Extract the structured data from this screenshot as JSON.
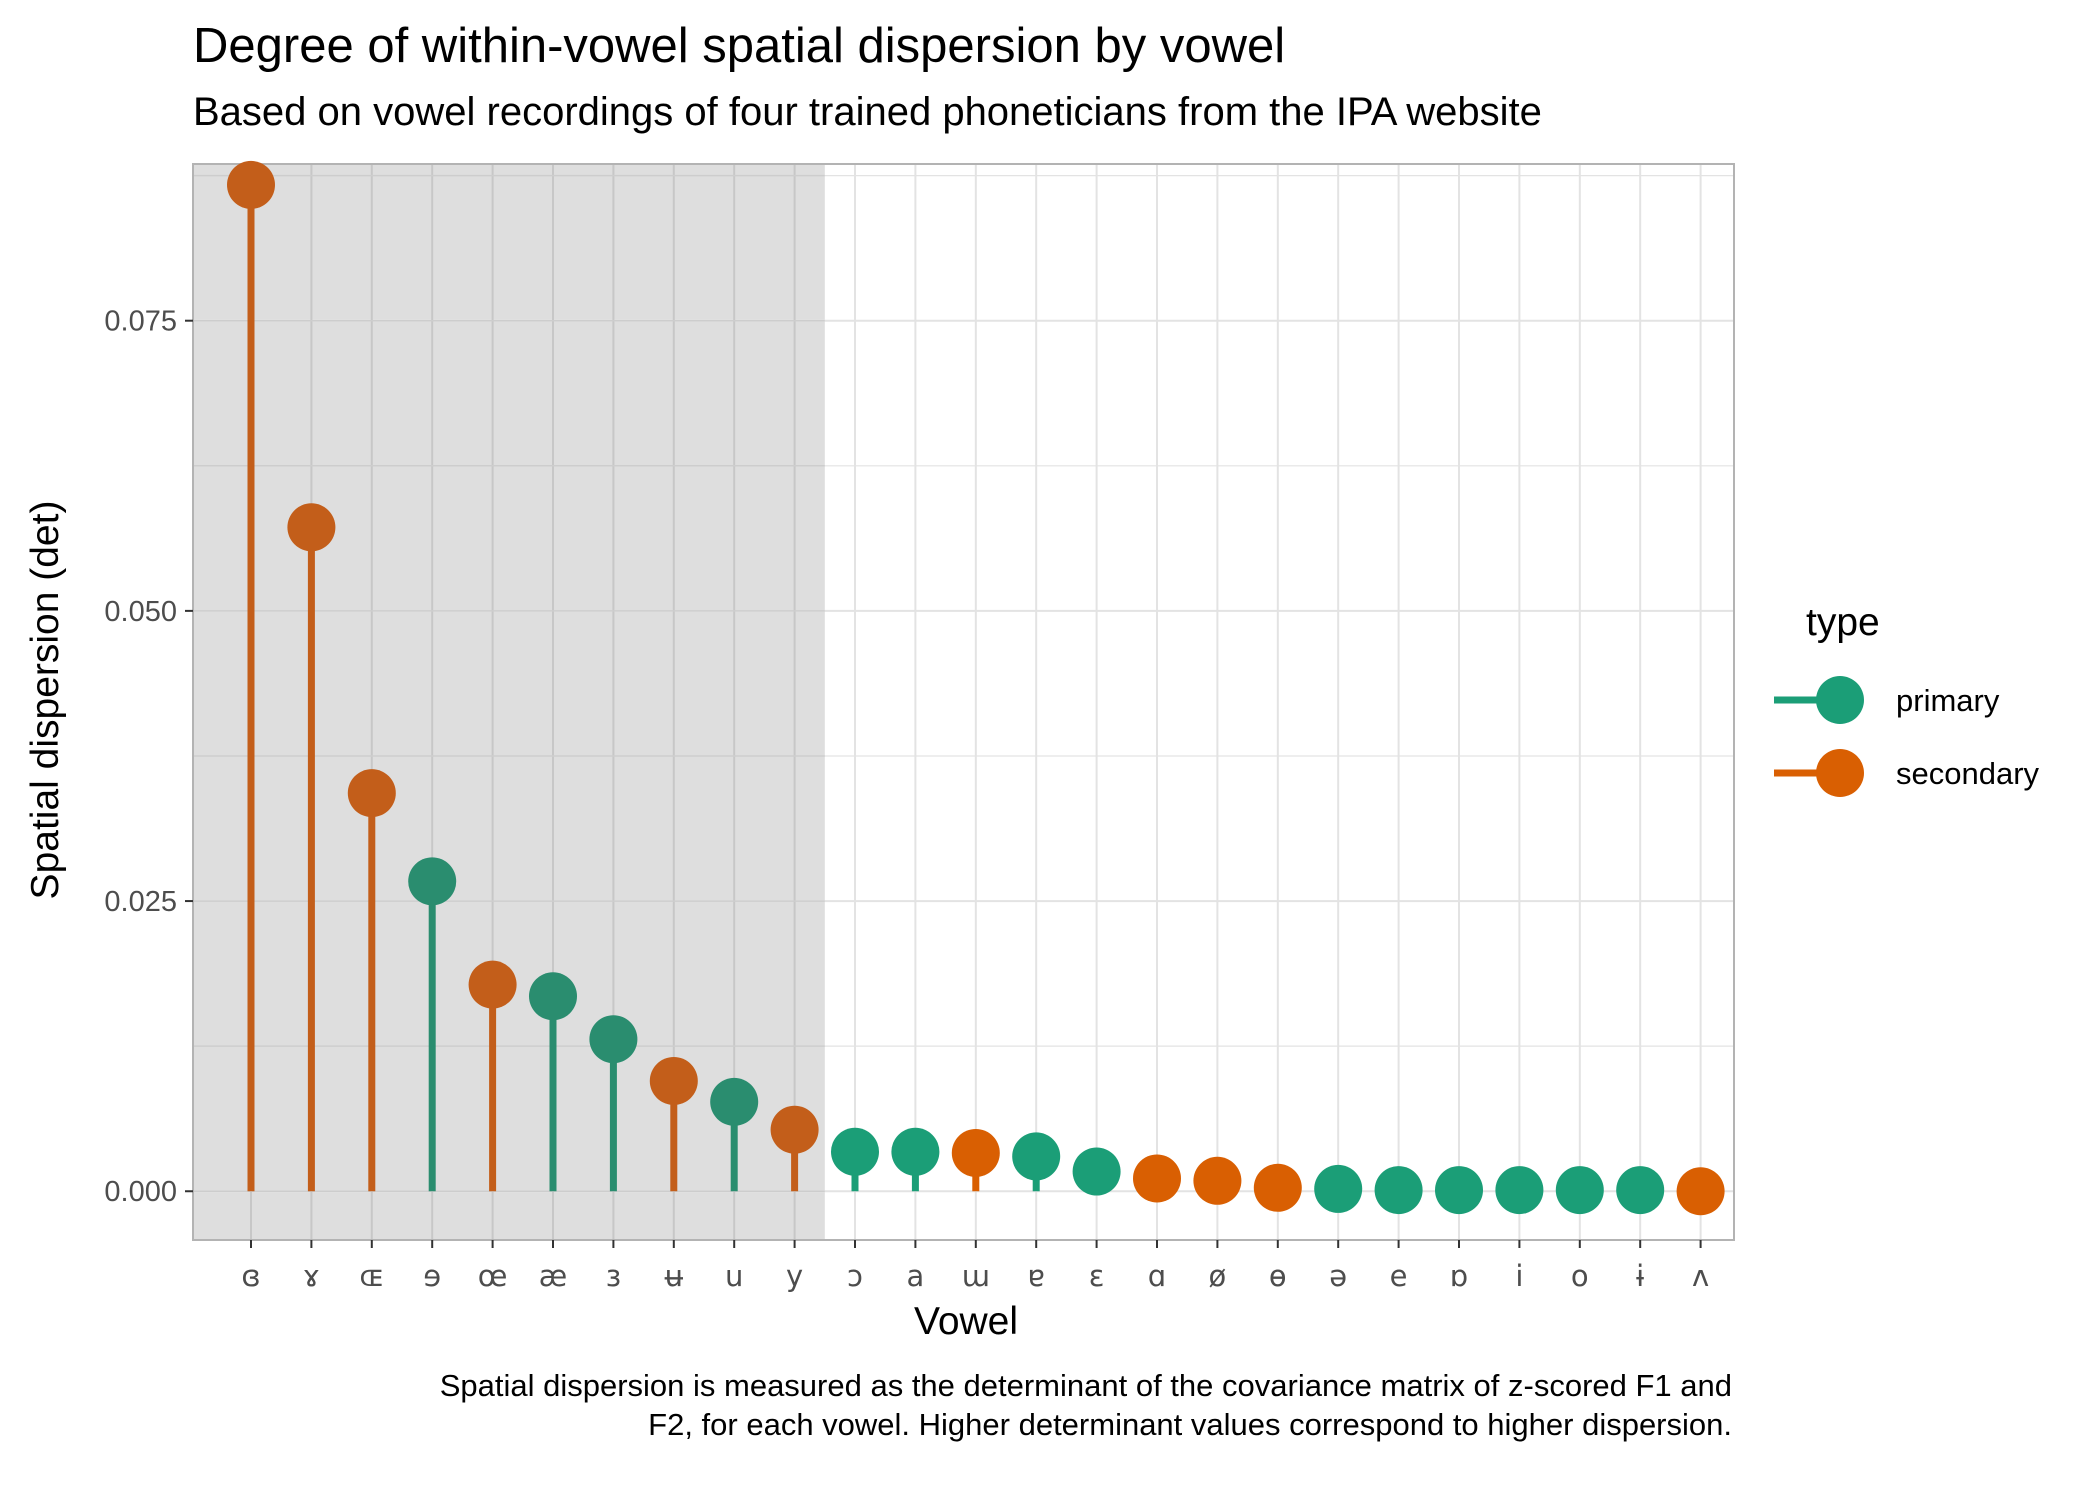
{
  "chart_data": {
    "type": "lollipop",
    "title": "Degree of within-vowel spatial dispersion by vowel",
    "subtitle": "Based on vowel recordings of four trained phoneticians from the IPA website",
    "xlabel": "Vowel",
    "ylabel": "Spatial dispersion (det)",
    "caption": "Spatial dispersion is measured as the determinant of the covariance matrix of z-scored F1 and F2, for each vowel. Higher determinant values correspond to higher dispersion.",
    "ylim": [
      -0.0042,
      0.0885
    ],
    "yticks": [
      0.0,
      0.025,
      0.05,
      0.075
    ],
    "ytick_labels": [
      "0.000",
      "0.025",
      "0.050",
      "0.075"
    ],
    "grid": true,
    "highlighted_categories": 10,
    "legend": {
      "title": "type",
      "position": "right",
      "items": [
        {
          "label": "primary",
          "color": "#1b9e77"
        },
        {
          "label": "secondary",
          "color": "#d95f02"
        }
      ]
    },
    "categories": [
      "ɞ",
      "ɤ",
      "ɶ",
      "ɘ",
      "œ",
      "æ",
      "ɜ",
      "ʉ",
      "u",
      "y",
      "ɔ",
      "a",
      "ɯ",
      "ɐ",
      "ɛ",
      "ɑ",
      "ø",
      "ɵ",
      "ə",
      "e",
      "ɒ",
      "i",
      "o",
      "ɨ",
      "ʌ"
    ],
    "values": [
      0.0867,
      0.0572,
      0.0343,
      0.0267,
      0.0178,
      0.0168,
      0.0131,
      0.0095,
      0.0077,
      0.0053,
      0.0034,
      0.0034,
      0.0033,
      0.003,
      0.0017,
      0.0011,
      0.0009,
      0.0003,
      0.0002,
      0.0001,
      0.0001,
      0.0001,
      0.0001,
      0.0001,
      0.0
    ],
    "types": [
      "secondary",
      "secondary",
      "secondary",
      "primary",
      "secondary",
      "primary",
      "primary",
      "secondary",
      "primary",
      "secondary",
      "primary",
      "primary",
      "secondary",
      "primary",
      "primary",
      "secondary",
      "secondary",
      "secondary",
      "primary",
      "primary",
      "primary",
      "primary",
      "primary",
      "primary",
      "secondary"
    ]
  },
  "colors": {
    "primary": "#1b9e77",
    "secondary": "#d95f02",
    "primary_shaded": "#2a8d6f",
    "secondary_shaded": "#c35e1a",
    "highlight_band": "#dedede",
    "grid": "#e3e3e3",
    "border": "#b3b3b3"
  }
}
